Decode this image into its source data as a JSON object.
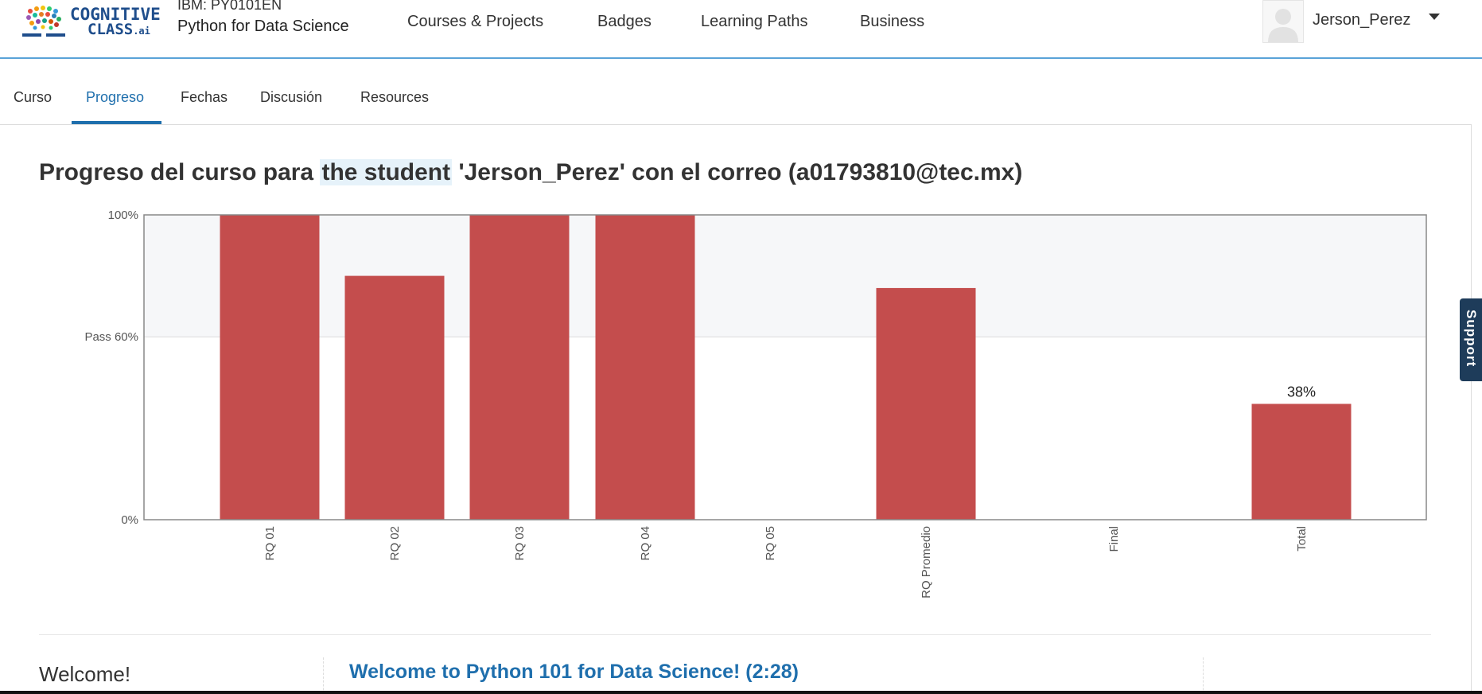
{
  "header": {
    "logo_line1": "COGNITIVE",
    "logo_line2": "CLASS",
    "logo_ai": ".ai",
    "course_code": "IBM: PY0101EN",
    "course_name": "Python for Data Science",
    "nav": [
      "Courses & Projects",
      "Badges",
      "Learning Paths",
      "Business"
    ],
    "username": "Jerson_Perez"
  },
  "tabs": [
    "Curso",
    "Progreso",
    "Fechas",
    "Discusión",
    "Resources"
  ],
  "active_tab": "Progreso",
  "title": {
    "prefix": "Progreso del curso para ",
    "highlight": "the student",
    "suffix": " 'Jerson_Perez' con el correo (a01793810@tec.mx)"
  },
  "chart_data": {
    "type": "bar",
    "categories": [
      "RQ 01",
      "RQ 02",
      "RQ 03",
      "RQ 04",
      "RQ 05",
      "RQ Promedio",
      "Final",
      "Total"
    ],
    "values": [
      100,
      80,
      100,
      100,
      0,
      76,
      0,
      38
    ],
    "ylim": [
      0,
      100
    ],
    "yticks": [
      {
        "value": 100,
        "label": "100%"
      },
      {
        "value": 60,
        "label": "Pass 60%"
      },
      {
        "value": 0,
        "label": "0%"
      }
    ],
    "data_labels": [
      {
        "category": "Total",
        "label": "38%"
      }
    ],
    "bar_color": "#c44d4d",
    "band_color": "#f6f7f9"
  },
  "support_label": "Support",
  "welcome": {
    "section": "Welcome!",
    "link": "Welcome to Python 101 for Data Science! (2:28)"
  },
  "colors": {
    "accent": "#1f6fad",
    "logo": "#1f4e8c"
  }
}
